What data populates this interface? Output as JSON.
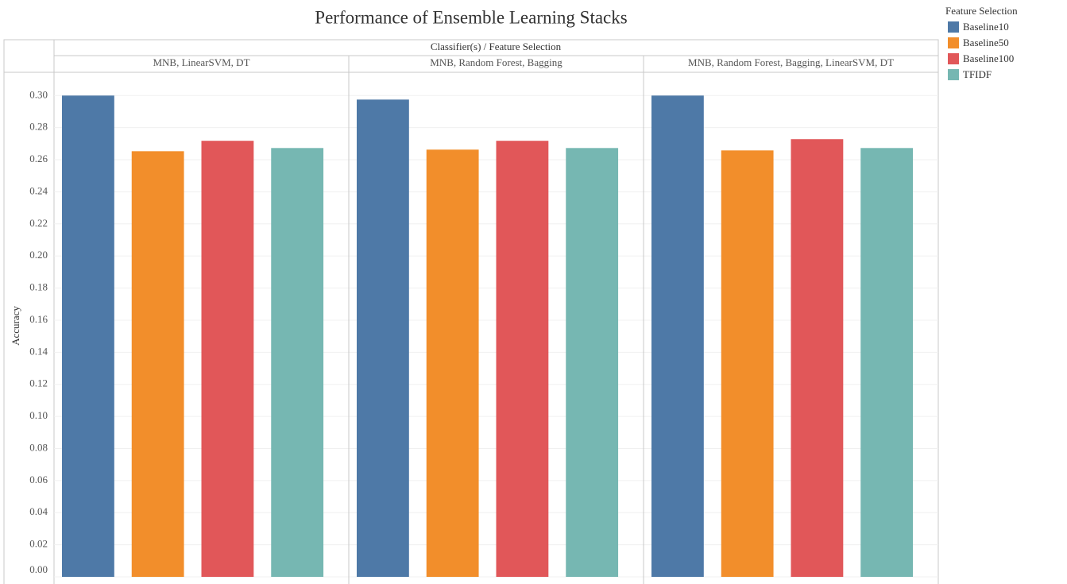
{
  "chart_data": {
    "type": "bar",
    "title": "Performance of Ensemble Learning Stacks",
    "header": "Classifier(s)  /  Feature Selection",
    "y_label": "Accuracy",
    "legend_title": "Feature Selection",
    "categories": [
      "MNB, LinearSVM, DT",
      "MNB, Random Forest, Bagging",
      "MNB, Random Forest, Bagging, LinearSVM, DT"
    ],
    "series": [
      {
        "name": "Baseline10",
        "color": "#4e79a7",
        "values": [
          0.3,
          0.2975,
          0.3
        ]
      },
      {
        "name": "Baseline50",
        "color": "#f28e2b",
        "values": [
          0.2653,
          0.2663,
          0.2658
        ]
      },
      {
        "name": "Baseline100",
        "color": "#e15759",
        "values": [
          0.2718,
          0.2718,
          0.2728
        ]
      },
      {
        "name": "TFIDF",
        "color": "#76b7b2",
        "values": [
          0.2673,
          0.2673,
          0.2673
        ]
      }
    ],
    "ylim": [
      0,
      0.314
    ],
    "yticks": [
      {
        "value": 0,
        "label": "0.00"
      },
      {
        "value": 0.02,
        "label": "0.02"
      },
      {
        "value": 0.04,
        "label": "0.04"
      },
      {
        "value": 0.06,
        "label": "0.06"
      },
      {
        "value": 0.08,
        "label": "0.08"
      },
      {
        "value": 0.1,
        "label": "0.10"
      },
      {
        "value": 0.12,
        "label": "0.12"
      },
      {
        "value": 0.14,
        "label": "0.14"
      },
      {
        "value": 0.16,
        "label": "0.16"
      },
      {
        "value": 0.18,
        "label": "0.18"
      },
      {
        "value": 0.2,
        "label": "0.20"
      },
      {
        "value": 0.22,
        "label": "0.22"
      },
      {
        "value": 0.24,
        "label": "0.24"
      },
      {
        "value": 0.26,
        "label": "0.26"
      },
      {
        "value": 0.28,
        "label": "0.28"
      },
      {
        "value": 0.3,
        "label": "0.30"
      }
    ],
    "grid": true,
    "legend": "top-right"
  }
}
